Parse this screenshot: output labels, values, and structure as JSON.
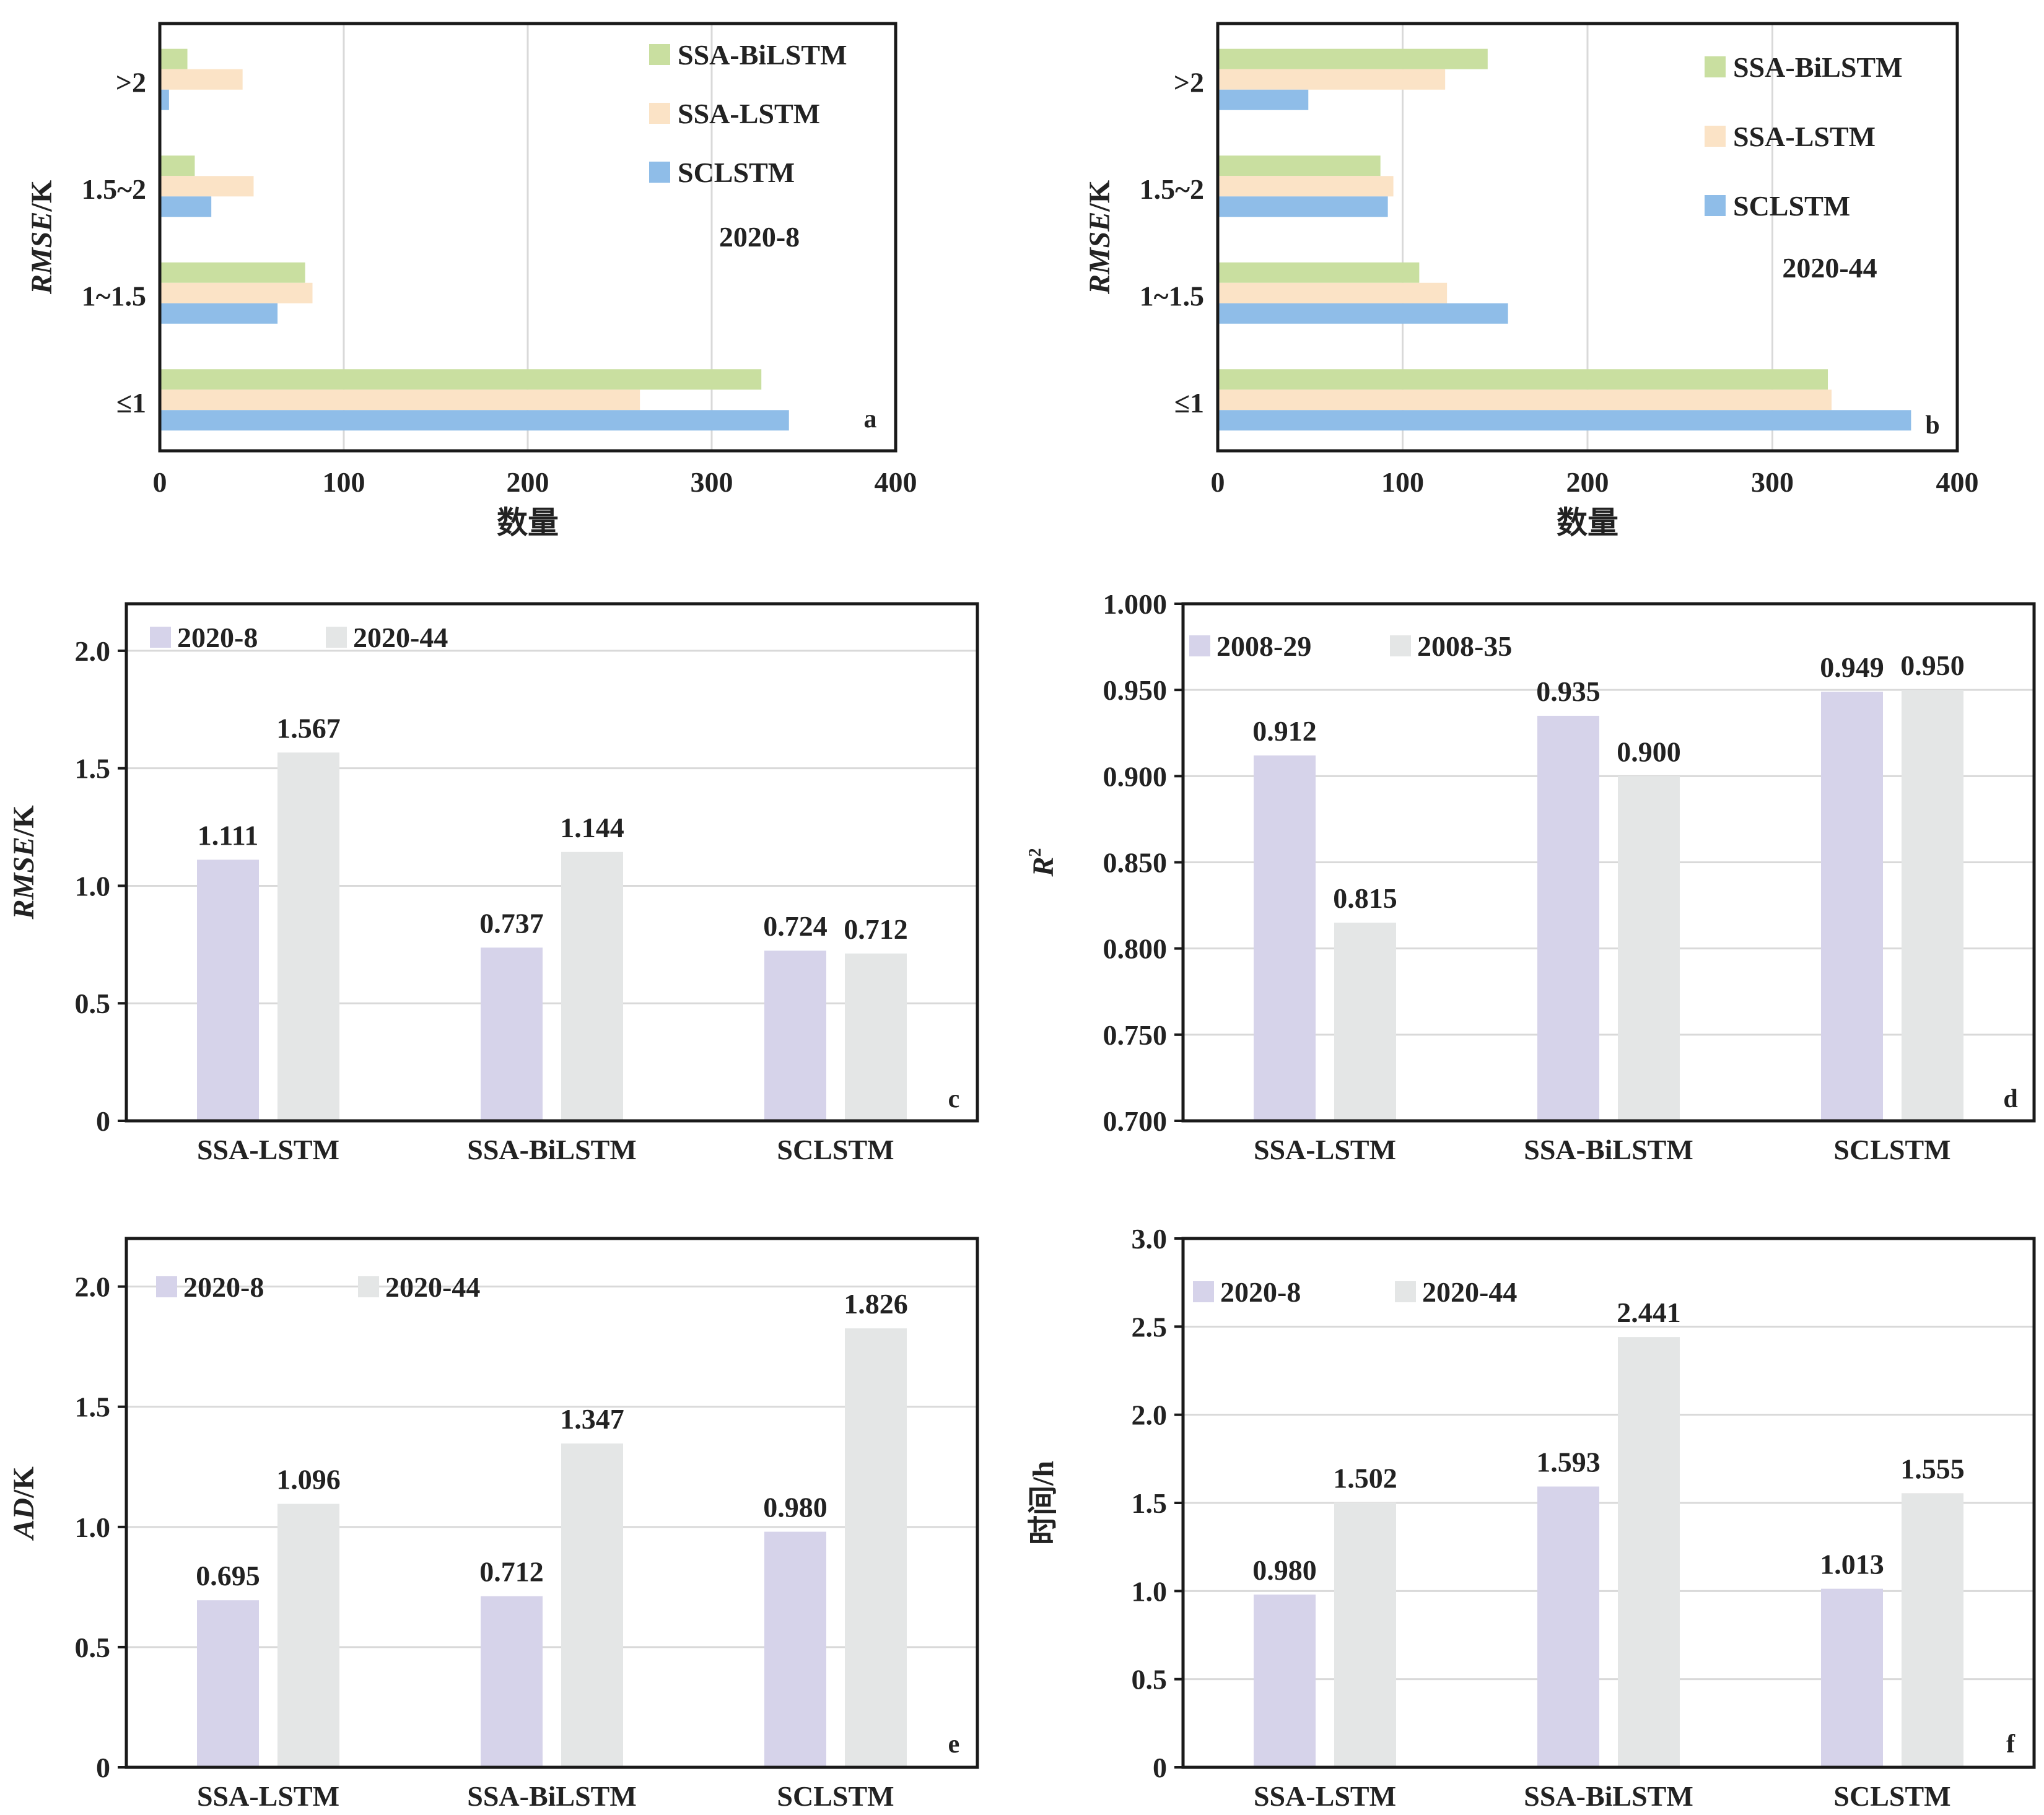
{
  "colors": {
    "bilstm": "#c9dfa0",
    "lstm": "#fbe3c6",
    "sclstm": "#8fbde8",
    "purple": "#d6d3ea",
    "gray": "#e4e6e6"
  },
  "chart_data": [
    {
      "id": "a",
      "type": "bar",
      "orientation": "horizontal",
      "panel_letter": "a",
      "annotation": "2020-8",
      "categories": [
        "≤1",
        "1~1.5",
        "1.5~2",
        ">2"
      ],
      "series": [
        {
          "name": "SSA-BiLSTM",
          "color_key": "bilstm",
          "values": [
            327,
            79,
            19,
            15
          ]
        },
        {
          "name": "SSA-LSTM",
          "color_key": "lstm",
          "values": [
            261,
            83,
            51,
            45
          ]
        },
        {
          "name": "SCLSTM",
          "color_key": "sclstm",
          "values": [
            342,
            64,
            28,
            5
          ]
        }
      ],
      "xlim": [
        0,
        400
      ],
      "xticks": [
        "0",
        "100",
        "200",
        "300",
        "400"
      ],
      "xlabel": "数量",
      "ylabel_italic": "RMSE",
      "ylabel_unit": "/K",
      "grid": true,
      "legend_position": "top-right"
    },
    {
      "id": "b",
      "type": "bar",
      "orientation": "horizontal",
      "panel_letter": "b",
      "annotation": "2020-44",
      "categories": [
        "≤1",
        "1~1.5",
        "1.5~2",
        ">2"
      ],
      "series": [
        {
          "name": "SSA-BiLSTM",
          "color_key": "bilstm",
          "values": [
            330,
            109,
            88,
            146
          ]
        },
        {
          "name": "SSA-LSTM",
          "color_key": "lstm",
          "values": [
            332,
            124,
            95,
            123
          ]
        },
        {
          "name": "SCLSTM",
          "color_key": "sclstm",
          "values": [
            375,
            157,
            92,
            49
          ]
        }
      ],
      "xlim": [
        0,
        400
      ],
      "xticks": [
        "0",
        "100",
        "200",
        "300",
        "400"
      ],
      "xlabel": "数量",
      "ylabel_italic": "RMSE",
      "ylabel_unit": "/K",
      "grid": true,
      "legend_position": "top-right"
    },
    {
      "id": "c",
      "type": "bar",
      "panel_letter": "c",
      "categories": [
        "SSA-LSTM",
        "SSA-BiLSTM",
        "SCLSTM"
      ],
      "series": [
        {
          "name": "2020-8",
          "color_key": "purple",
          "values": [
            1.111,
            0.737,
            0.724
          ],
          "labels": [
            "1.111",
            "0.737",
            "0.724"
          ]
        },
        {
          "name": "2020-44",
          "color_key": "gray",
          "values": [
            1.567,
            1.144,
            0.712
          ],
          "labels": [
            "1.567",
            "1.144",
            "0.712"
          ]
        }
      ],
      "ylim": [
        0,
        2.2
      ],
      "yticks": [
        {
          "v": 0,
          "label": "0"
        },
        {
          "v": 0.5,
          "label": "0.5"
        },
        {
          "v": 1.0,
          "label": "1.0"
        },
        {
          "v": 1.5,
          "label": "1.5"
        },
        {
          "v": 2.0,
          "label": "2.0"
        }
      ],
      "ylabel_italic": "RMSE",
      "ylabel_unit": "/K",
      "grid": true,
      "legend_position": "top-left"
    },
    {
      "id": "d",
      "type": "bar",
      "panel_letter": "d",
      "categories": [
        "SSA-LSTM",
        "SSA-BiLSTM",
        "SCLSTM"
      ],
      "series": [
        {
          "name": "2008-29",
          "color_key": "purple",
          "values": [
            0.912,
            0.935,
            0.949
          ],
          "labels": [
            "0.912",
            "0.935",
            "0.949"
          ]
        },
        {
          "name": "2008-35",
          "color_key": "gray",
          "values": [
            0.815,
            0.9,
            0.95
          ],
          "labels": [
            "0.815",
            "0.900",
            "0.950"
          ]
        }
      ],
      "ylim": [
        0.7,
        1.0
      ],
      "yticks": [
        {
          "v": 0.7,
          "label": "0.700"
        },
        {
          "v": 0.75,
          "label": "0.750"
        },
        {
          "v": 0.8,
          "label": "0.800"
        },
        {
          "v": 0.85,
          "label": "0.850"
        },
        {
          "v": 0.9,
          "label": "0.900"
        },
        {
          "v": 0.95,
          "label": "0.950"
        },
        {
          "v": 1.0,
          "label": "1.000"
        }
      ],
      "ylabel_italic": "R",
      "ylabel_superscript": "2",
      "grid": true,
      "legend_position": "top-left"
    },
    {
      "id": "e",
      "type": "bar",
      "panel_letter": "e",
      "categories": [
        "SSA-LSTM",
        "SSA-BiLSTM",
        "SCLSTM"
      ],
      "series": [
        {
          "name": "2020-8",
          "color_key": "purple",
          "values": [
            0.695,
            0.712,
            0.98
          ],
          "labels": [
            "0.695",
            "0.712",
            "0.980"
          ]
        },
        {
          "name": "2020-44",
          "color_key": "gray",
          "values": [
            1.096,
            1.347,
            1.826
          ],
          "labels": [
            "1.096",
            "1.347",
            "1.826"
          ]
        }
      ],
      "ylim": [
        0,
        2.2
      ],
      "yticks": [
        {
          "v": 0,
          "label": "0"
        },
        {
          "v": 0.5,
          "label": "0.5"
        },
        {
          "v": 1.0,
          "label": "1.0"
        },
        {
          "v": 1.5,
          "label": "1.5"
        },
        {
          "v": 2.0,
          "label": "2.0"
        }
      ],
      "ylabel_italic": "AD",
      "ylabel_unit": "/K",
      "grid": true,
      "legend_position": "top-left"
    },
    {
      "id": "f",
      "type": "bar",
      "panel_letter": "f",
      "categories": [
        "SSA-LSTM",
        "SSA-BiLSTM",
        "SCLSTM"
      ],
      "series": [
        {
          "name": "2020-8",
          "color_key": "purple",
          "values": [
            0.98,
            1.593,
            1.013
          ],
          "labels": [
            "0.980",
            "1.593",
            "1.013"
          ]
        },
        {
          "name": "2020-44",
          "color_key": "gray",
          "values": [
            1.502,
            2.441,
            1.555
          ],
          "labels": [
            "1.502",
            "2.441",
            "1.555"
          ]
        }
      ],
      "ylim": [
        0,
        3.0
      ],
      "yticks": [
        {
          "v": 0,
          "label": "0"
        },
        {
          "v": 0.5,
          "label": "0.5"
        },
        {
          "v": 1.0,
          "label": "1.0"
        },
        {
          "v": 1.5,
          "label": "1.5"
        },
        {
          "v": 2.0,
          "label": "2.0"
        },
        {
          "v": 2.5,
          "label": "2.5"
        },
        {
          "v": 3.0,
          "label": "3.0"
        }
      ],
      "ylabel_plain": "时间/h",
      "grid": true,
      "legend_position": "top-left"
    }
  ]
}
